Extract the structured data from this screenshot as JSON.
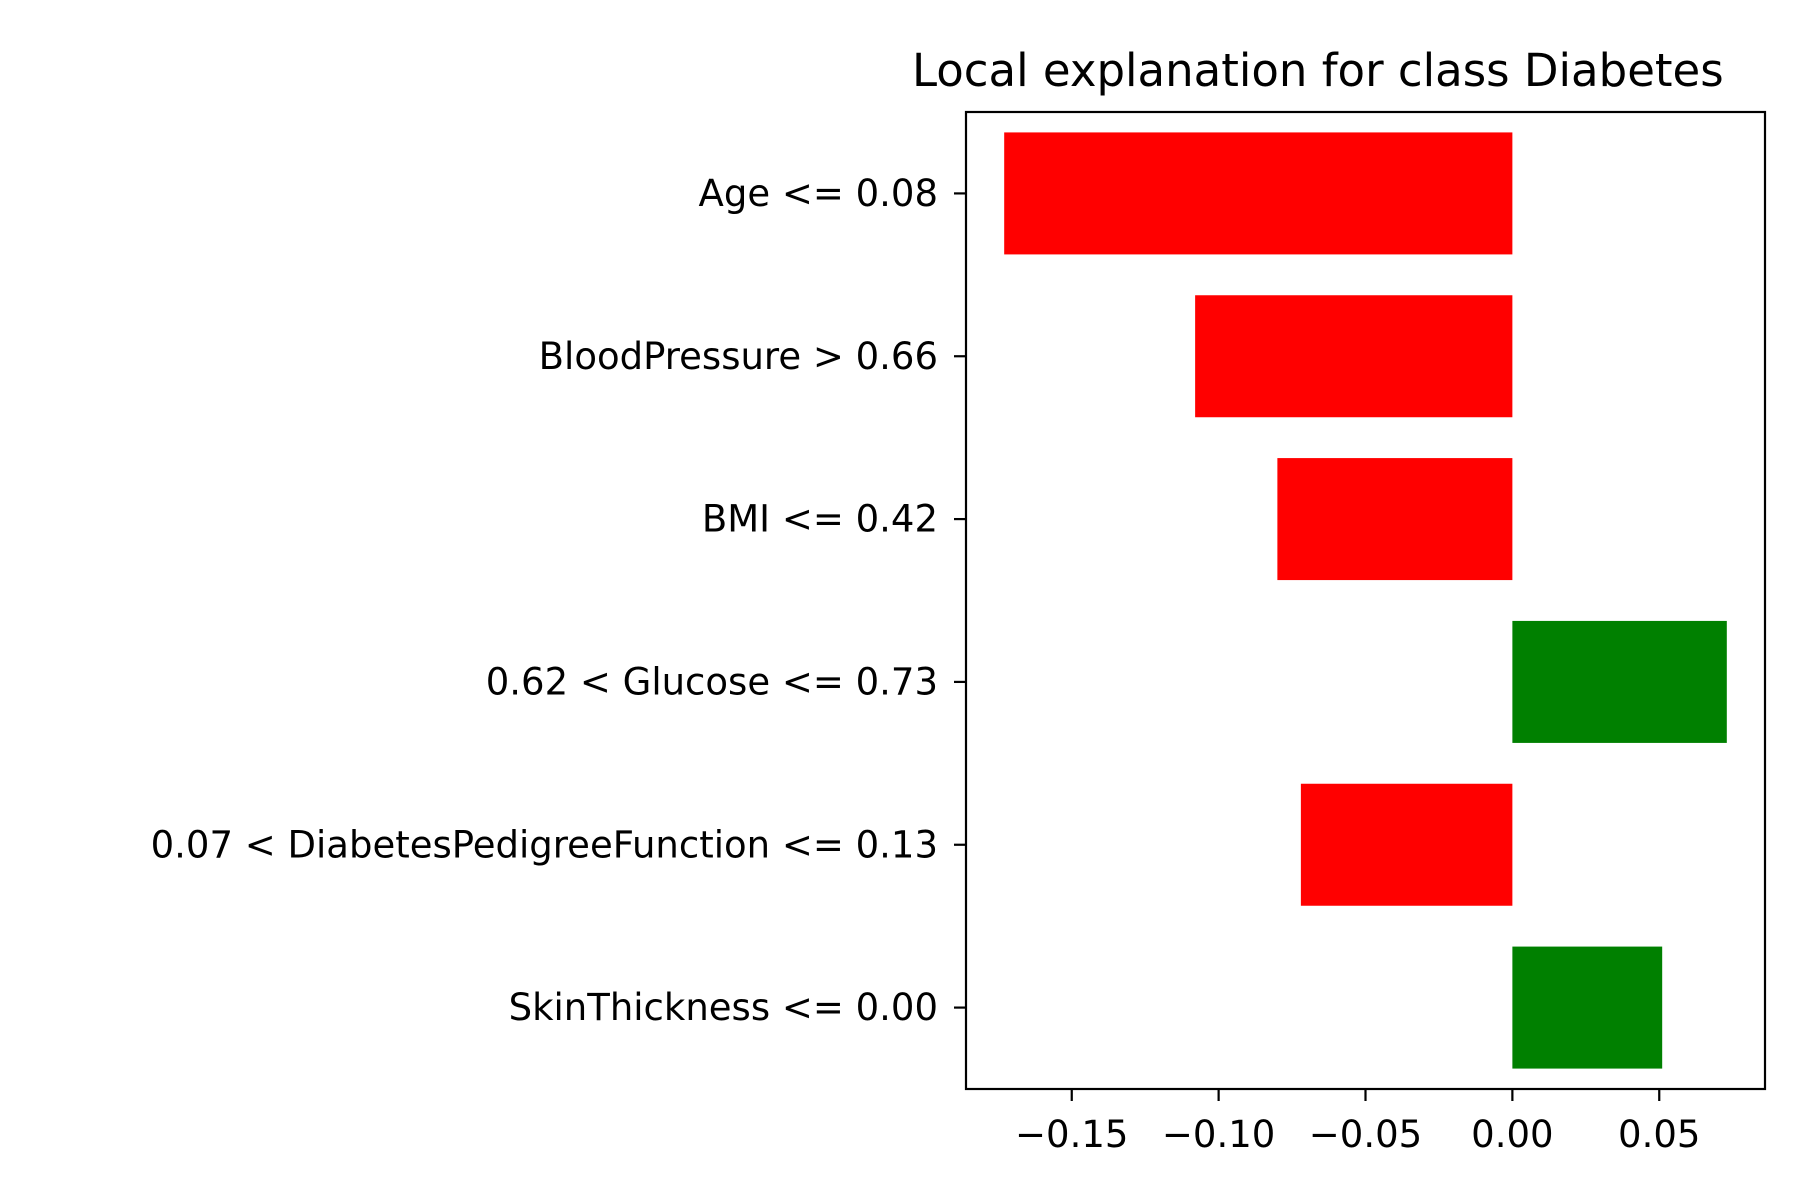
{
  "chart_data": {
    "type": "bar",
    "orientation": "horizontal",
    "title": "Local explanation for class Diabetes",
    "xlabel": "",
    "ylabel": "",
    "categories": [
      "Age <= 0.08",
      "BloodPressure > 0.66",
      "BMI <= 0.42",
      "0.62 < Glucose <= 0.73",
      "0.07 < DiabetesPedigreeFunction <= 0.13",
      "SkinThickness <= 0.00"
    ],
    "values": [
      -0.173,
      -0.108,
      -0.08,
      0.073,
      -0.072,
      0.051
    ],
    "xlim": [
      -0.186,
      0.086
    ],
    "xticks": [
      -0.15,
      -0.1,
      -0.05,
      0.0,
      0.05
    ],
    "xtick_labels": [
      "−0.15",
      "−0.10",
      "−0.05",
      "0.00",
      "0.05"
    ],
    "grid": false,
    "colors": {
      "negative": "#ff0000",
      "positive": "#008000",
      "axis": "#000000"
    }
  }
}
